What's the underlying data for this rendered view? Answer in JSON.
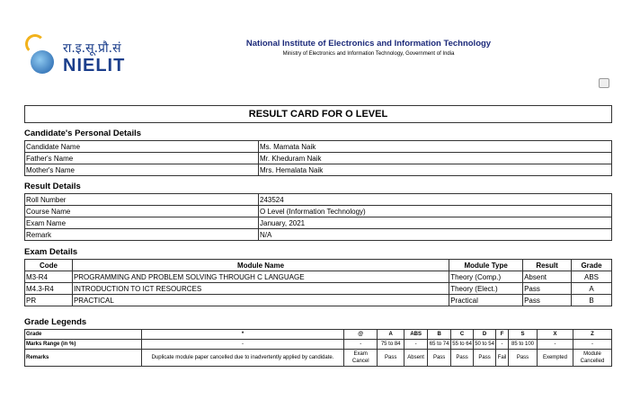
{
  "header": {
    "logo_hindi": "रा.इ.सू.प्रौ.सं",
    "logo_name": "NIELIT",
    "org_name": "National Institute of Electronics and Information Technology",
    "org_sub": "Ministry of Electronics and Information Technology, Government of India",
    "print_icon": "printer-icon"
  },
  "title": "RESULT CARD FOR O LEVEL",
  "personal": {
    "heading": "Candidate's Personal Details",
    "rows": [
      [
        "Candidate Name",
        "Ms. Mamata Naik"
      ],
      [
        "Father's Name",
        "Mr. Kheduram Naik"
      ],
      [
        "Mother's Name",
        "Mrs. Hemalata Naik"
      ]
    ]
  },
  "result": {
    "heading": "Result Details",
    "rows": [
      [
        "Roll Number",
        "243524"
      ],
      [
        "Course Name",
        "O Level (Information Technology)"
      ],
      [
        "Exam Name",
        "January, 2021"
      ],
      [
        "Remark",
        "N/A"
      ]
    ]
  },
  "exam": {
    "heading": "Exam Details",
    "columns": [
      "Code",
      "Module Name",
      "Module Type",
      "Result",
      "Grade"
    ],
    "rows": [
      [
        "M3-R4",
        "PROGRAMMING AND PROBLEM SOLVING THROUGH C LANGUAGE",
        "Theory (Comp.)",
        "Absent",
        "ABS"
      ],
      [
        "M4.3-R4",
        "INTRODUCTION TO ICT RESOURCES",
        "Theory (Elect.)",
        "Pass",
        "A"
      ],
      [
        "PR",
        "PRACTICAL",
        "Practical",
        "Pass",
        "B"
      ]
    ]
  },
  "legend": {
    "heading": "Grade Legends",
    "rows": [
      [
        "Grade",
        "*",
        "@",
        "A",
        "ABS",
        "B",
        "C",
        "D",
        "F",
        "S",
        "X",
        "Z"
      ],
      [
        "Marks Range (in %)",
        "-",
        "-",
        "75 to 84",
        "-",
        "65 to 74",
        "55 to 64",
        "50 to 54",
        "-",
        "85 to 100",
        "-",
        "-"
      ],
      [
        "Remarks",
        "Duplicate module paper cancelled due to inadvertently applied by candidate.",
        "Exam Cancel",
        "Pass",
        "Absent",
        "Pass",
        "Pass",
        "Pass",
        "Fail",
        "Pass",
        "Exempted",
        "Module Cancelled"
      ]
    ]
  }
}
